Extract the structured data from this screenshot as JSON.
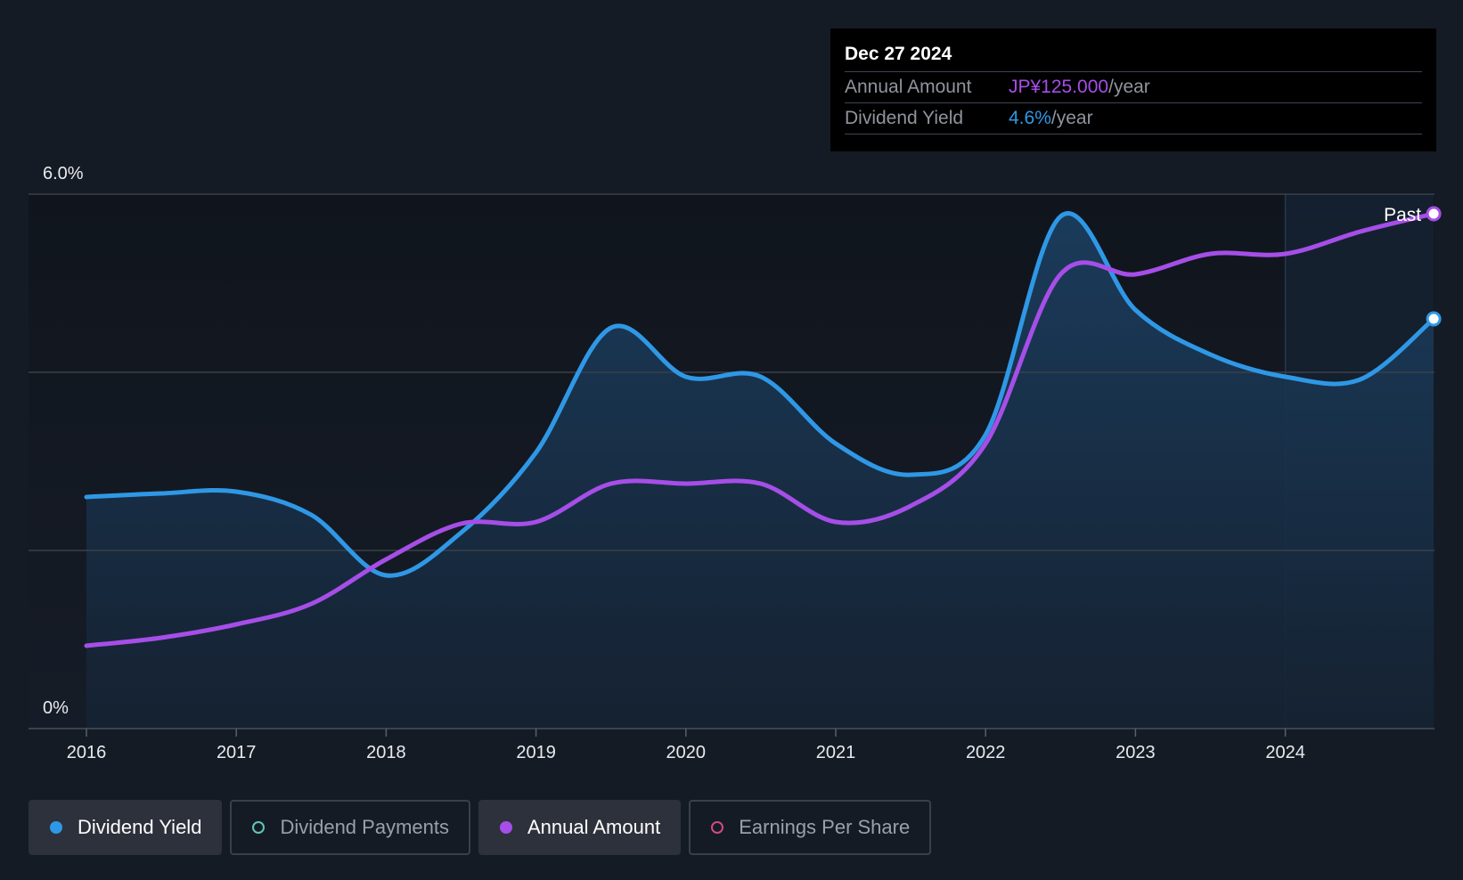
{
  "tooltip": {
    "date": "Dec 27 2024",
    "rows": [
      {
        "label": "Annual Amount",
        "value": "JP¥125.000",
        "unit": "/year"
      },
      {
        "label": "Dividend Yield",
        "value": "4.6%",
        "unit": "/year"
      }
    ]
  },
  "legend": [
    {
      "label": "Dividend Yield",
      "color": "#2f98e6",
      "active": true,
      "filled": true
    },
    {
      "label": "Dividend Payments",
      "color": "#5ec8b8",
      "active": false,
      "filled": false
    },
    {
      "label": "Annual Amount",
      "color": "#a64ee8",
      "active": true,
      "filled": true
    },
    {
      "label": "Earnings Per Share",
      "color": "#d04a7e",
      "active": false,
      "filled": false
    }
  ],
  "chart_data": {
    "type": "line",
    "y_axis": {
      "min": 0,
      "max": 6,
      "unit": "%",
      "tick_labels": [
        "6.0%",
        "0%"
      ],
      "gridlines": [
        2,
        4,
        6
      ]
    },
    "x_axis": {
      "min": 2015.62,
      "max": 2024.99,
      "ticks": [
        2016,
        2017,
        2018,
        2019,
        2020,
        2021,
        2022,
        2023,
        2024
      ]
    },
    "past_label": "Past",
    "past_region_start": 2024.0,
    "colors": {
      "yield": "#2f98e6",
      "annual": "#a64ee8",
      "grid": "#3a404a",
      "past_shade": "#1b3550"
    },
    "series": [
      {
        "name": "Dividend Yield",
        "key": "yield",
        "filled": true,
        "points": [
          [
            2016.0,
            2.6
          ],
          [
            2016.5,
            2.64
          ],
          [
            2017.0,
            2.66
          ],
          [
            2017.5,
            2.4
          ],
          [
            2018.0,
            1.72
          ],
          [
            2018.5,
            2.2
          ],
          [
            2019.0,
            3.1
          ],
          [
            2019.5,
            4.5
          ],
          [
            2020.0,
            3.95
          ],
          [
            2020.5,
            3.95
          ],
          [
            2021.0,
            3.2
          ],
          [
            2021.5,
            2.85
          ],
          [
            2022.0,
            3.3
          ],
          [
            2022.5,
            5.75
          ],
          [
            2023.0,
            4.7
          ],
          [
            2023.5,
            4.2
          ],
          [
            2024.0,
            3.95
          ],
          [
            2024.5,
            3.92
          ],
          [
            2024.99,
            4.6
          ]
        ]
      },
      {
        "name": "Annual Amount",
        "key": "annual",
        "filled": false,
        "points": [
          [
            2016.0,
            0.93
          ],
          [
            2016.5,
            1.02
          ],
          [
            2017.0,
            1.17
          ],
          [
            2017.5,
            1.4
          ],
          [
            2018.0,
            1.9
          ],
          [
            2018.5,
            2.3
          ],
          [
            2019.0,
            2.32
          ],
          [
            2019.5,
            2.75
          ],
          [
            2020.0,
            2.75
          ],
          [
            2020.5,
            2.75
          ],
          [
            2021.0,
            2.32
          ],
          [
            2021.5,
            2.5
          ],
          [
            2022.0,
            3.2
          ],
          [
            2022.5,
            5.1
          ],
          [
            2023.0,
            5.1
          ],
          [
            2023.5,
            5.33
          ],
          [
            2024.0,
            5.33
          ],
          [
            2024.5,
            5.58
          ],
          [
            2024.99,
            5.78
          ]
        ]
      }
    ]
  }
}
